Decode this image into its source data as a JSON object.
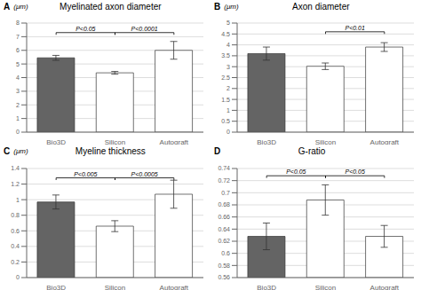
{
  "chart_data": [
    {
      "type": "bar",
      "panel_label": "A",
      "ylabel": "(μm)",
      "title": "Myelinated axon diameter",
      "categories": [
        "Bio3D",
        "Silicon",
        "Autograft"
      ],
      "values": [
        5.45,
        4.35,
        6.0
      ],
      "errors": [
        0.18,
        0.1,
        0.65
      ],
      "colors": [
        "#646464",
        "#ffffff",
        "#ffffff"
      ],
      "ylim": [
        0,
        8
      ],
      "yticks": [
        0,
        1,
        2,
        3,
        4,
        5,
        6,
        7,
        8
      ],
      "grid": true,
      "annotations": [
        {
          "x1": "Bio3D",
          "x2": "Silicon",
          "y": 7.3,
          "text": "P<0.05"
        },
        {
          "x1": "Silicon",
          "x2": "Autograft",
          "y": 7.3,
          "text": "P<0.0001"
        }
      ]
    },
    {
      "type": "bar",
      "panel_label": "B",
      "ylabel": "(μm)",
      "title": "Axon diameter",
      "categories": [
        "Bio3D",
        "Silicon",
        "Autograft"
      ],
      "values": [
        3.6,
        3.02,
        3.9
      ],
      "errors": [
        0.3,
        0.15,
        0.2
      ],
      "colors": [
        "#646464",
        "#ffffff",
        "#ffffff"
      ],
      "ylim": [
        0,
        5
      ],
      "yticks": [
        0,
        0.5,
        1,
        1.5,
        2,
        2.5,
        3,
        3.5,
        4,
        4.5,
        5
      ],
      "grid": true,
      "annotations": [
        {
          "x1": "Silicon",
          "x2": "Autograft",
          "y": 4.6,
          "text": "P<0.01"
        }
      ]
    },
    {
      "type": "bar",
      "panel_label": "C",
      "ylabel": "(μm)",
      "title": "Myeline thickness",
      "categories": [
        "Bio3D",
        "Silicon",
        "Autograft"
      ],
      "values": [
        0.97,
        0.66,
        1.07
      ],
      "errors": [
        0.09,
        0.07,
        0.18
      ],
      "colors": [
        "#646464",
        "#ffffff",
        "#ffffff"
      ],
      "ylim": [
        0,
        1.4
      ],
      "yticks": [
        0,
        0.2,
        0.4,
        0.6,
        0.8,
        1,
        1.2,
        1.4
      ],
      "grid": true,
      "annotations": [
        {
          "x1": "Bio3D",
          "x2": "Silicon",
          "y": 1.28,
          "text": "P<0.005"
        },
        {
          "x1": "Silicon",
          "x2": "Autograft",
          "y": 1.28,
          "text": "P<0.0005"
        }
      ]
    },
    {
      "type": "bar",
      "panel_label": "D",
      "title": "G-ratio",
      "categories": [
        "Bio3D",
        "Silicon",
        "Autograft"
      ],
      "values": [
        0.628,
        0.688,
        0.628
      ],
      "errors": [
        0.022,
        0.025,
        0.018
      ],
      "colors": [
        "#646464",
        "#ffffff",
        "#ffffff"
      ],
      "ylim": [
        0.56,
        0.74
      ],
      "yticks": [
        0.56,
        0.58,
        0.6,
        0.62,
        0.64,
        0.66,
        0.68,
        0.7,
        0.72,
        0.74
      ],
      "grid": true,
      "annotations": [
        {
          "x1": "Bio3D",
          "x2": "Silicon",
          "y": 0.728,
          "text": "P<0.05"
        },
        {
          "x1": "Silicon",
          "x2": "Autograft",
          "y": 0.728,
          "text": "P<0.05"
        }
      ]
    }
  ]
}
